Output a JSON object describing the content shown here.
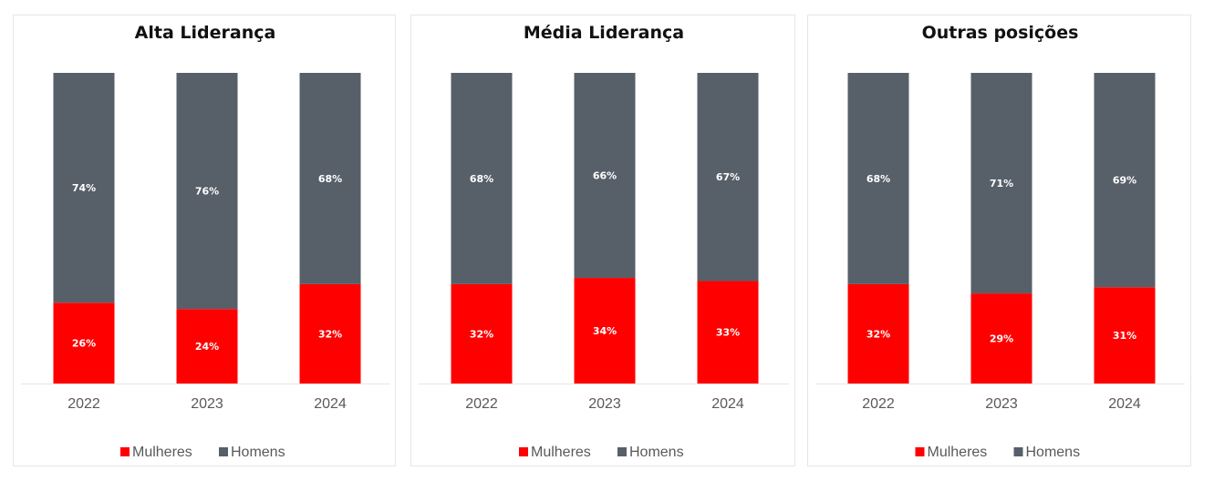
{
  "chart_data": [
    {
      "type": "bar",
      "stacked": true,
      "title": "Alta Liderança",
      "categories": [
        "2022",
        "2023",
        "2024"
      ],
      "series": [
        {
          "name": "Mulheres",
          "values": [
            26,
            24,
            32
          ],
          "labels": [
            "26%",
            "24%",
            "32%"
          ],
          "color": "#ff0000"
        },
        {
          "name": "Homens",
          "values": [
            74,
            76,
            68
          ],
          "labels": [
            "74%",
            "76%",
            "68%"
          ],
          "color": "#575f69"
        }
      ],
      "legend": "bottom"
    },
    {
      "type": "bar",
      "stacked": true,
      "title": "Média Liderança",
      "categories": [
        "2022",
        "2023",
        "2024"
      ],
      "series": [
        {
          "name": "Mulheres",
          "values": [
            32,
            34,
            33
          ],
          "labels": [
            "32%",
            "34%",
            "33%"
          ],
          "color": "#ff0000"
        },
        {
          "name": "Homens",
          "values": [
            68,
            66,
            67
          ],
          "labels": [
            "68%",
            "66%",
            "67%"
          ],
          "color": "#575f69"
        }
      ],
      "legend": "bottom"
    },
    {
      "type": "bar",
      "stacked": true,
      "title": "Outras posições",
      "categories": [
        "2022",
        "2023",
        "2024"
      ],
      "series": [
        {
          "name": "Mulheres",
          "values": [
            32,
            29,
            31
          ],
          "labels": [
            "32%",
            "29%",
            "31%"
          ],
          "color": "#ff0000"
        },
        {
          "name": "Homens",
          "values": [
            68,
            71,
            69
          ],
          "labels": [
            "68%",
            "71%",
            "69%"
          ],
          "color": "#575f69"
        }
      ],
      "legend": "bottom"
    }
  ]
}
